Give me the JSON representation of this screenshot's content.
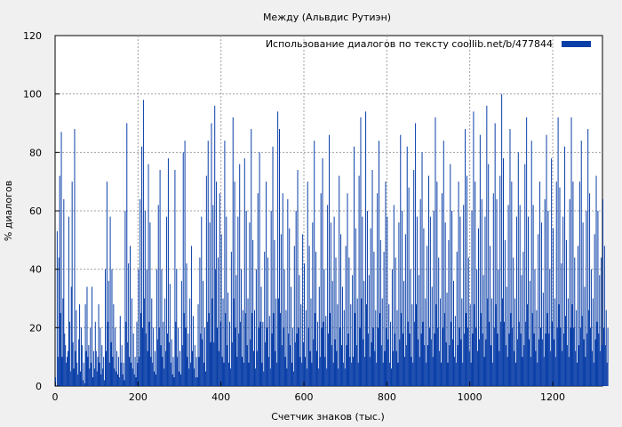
{
  "chart_data": {
    "type": "bar",
    "title": "Между (Альвдис Рутиэн)",
    "xlabel": "Счетчик знаков (тыс.)",
    "ylabel": "% диалогов",
    "xlim": [
      0,
      1320
    ],
    "ylim": [
      0,
      120
    ],
    "xticks": [
      0,
      200,
      400,
      600,
      800,
      1000,
      1200
    ],
    "yticks": [
      0,
      20,
      40,
      60,
      80,
      100,
      120
    ],
    "grid": true,
    "legend_position": "top-right",
    "bar_color": "#0b3fa8",
    "series": [
      {
        "name": "Использование диалогов по тексту  coollib.net/b/477844",
        "x_step": 2,
        "values": [
          3,
          0,
          53,
          10,
          44,
          72,
          25,
          87,
          10,
          30,
          64,
          18,
          14,
          8,
          10,
          12,
          58,
          22,
          5,
          34,
          70,
          15,
          6,
          88,
          12,
          26,
          8,
          4,
          16,
          28,
          5,
          20,
          14,
          2,
          8,
          1,
          28,
          12,
          34,
          10,
          14,
          6,
          20,
          8,
          34,
          3,
          12,
          6,
          22,
          12,
          5,
          10,
          28,
          8,
          20,
          4,
          14,
          6,
          10,
          2,
          40,
          12,
          70,
          22,
          36,
          8,
          58,
          15,
          40,
          10,
          28,
          6,
          20,
          5,
          12,
          4,
          10,
          3,
          24,
          8,
          14,
          4,
          8,
          2,
          60,
          22,
          90,
          15,
          42,
          10,
          48,
          8,
          30,
          6,
          18,
          4,
          10,
          3,
          22,
          8,
          40,
          10,
          64,
          25,
          82,
          20,
          98,
          30,
          60,
          18,
          40,
          12,
          76,
          22,
          56,
          10,
          30,
          8,
          20,
          5,
          12,
          4,
          40,
          16,
          62,
          20,
          74,
          14,
          40,
          10,
          22,
          6,
          30,
          12,
          58,
          18,
          78,
          15,
          35,
          8,
          16,
          4,
          10,
          3,
          74,
          22,
          40,
          10,
          20,
          5,
          12,
          4,
          36,
          14,
          80,
          25,
          84,
          20,
          42,
          10,
          18,
          6,
          30,
          8,
          48,
          12,
          24,
          6,
          14,
          3,
          10,
          3,
          28,
          10,
          44,
          18,
          58,
          16,
          36,
          8,
          20,
          5,
          72,
          22,
          84,
          25,
          56,
          15,
          90,
          30,
          62,
          15,
          96,
          40,
          70,
          20,
          44,
          12,
          66,
          22,
          52,
          10,
          30,
          8,
          84,
          25,
          58,
          14,
          32,
          8,
          22,
          6,
          46,
          15,
          92,
          30,
          70,
          20,
          38,
          10,
          58,
          18,
          76,
          22,
          40,
          10,
          26,
          8,
          78,
          25,
          60,
          14,
          30,
          8,
          56,
          16,
          88,
          25,
          50,
          12,
          26,
          6,
          40,
          12,
          66,
          20,
          80,
          22,
          34,
          8,
          22,
          5,
          46,
          15,
          70,
          20,
          44,
          10,
          24,
          6,
          60,
          18,
          82,
          25,
          50,
          12,
          30,
          8,
          94,
          30,
          88,
          25,
          52,
          14,
          66,
          20,
          40,
          10,
          26,
          6,
          64,
          18,
          54,
          14,
          34,
          8,
          20,
          5,
          48,
          15,
          60,
          18,
          74,
          20,
          38,
          10,
          28,
          8,
          52,
          15,
          42,
          10,
          26,
          6,
          70,
          20,
          48,
          12,
          30,
          8,
          56,
          16,
          84,
          25,
          46,
          12,
          22,
          6,
          34,
          10,
          66,
          20,
          78,
          22,
          40,
          10,
          24,
          6,
          62,
          18,
          86,
          25,
          56,
          14,
          36,
          8,
          58,
          16,
          44,
          12,
          28,
          6,
          72,
          20,
          52,
          14,
          34,
          8,
          26,
          6,
          48,
          14,
          66,
          18,
          44,
          10,
          28,
          8,
          38,
          10,
          82,
          25,
          54,
          14,
          30,
          8,
          72,
          20,
          92,
          30,
          58,
          16,
          36,
          10,
          94,
          28,
          60,
          18,
          38,
          10,
          54,
          15,
          74,
          20,
          46,
          12,
          26,
          8,
          66,
          20,
          84,
          25,
          50,
          14,
          30,
          8,
          46,
          12,
          70,
          20,
          58,
          16,
          28,
          8,
          22,
          6,
          40,
          12,
          62,
          18,
          44,
          12,
          26,
          8,
          56,
          16,
          86,
          25,
          60,
          18,
          36,
          10,
          52,
          14,
          82,
          22,
          68,
          18,
          40,
          10,
          28,
          8,
          74,
          22,
          90,
          28,
          58,
          16,
          38,
          10,
          64,
          18,
          80,
          22,
          54,
          14,
          30,
          8,
          48,
          14,
          72,
          20,
          58,
          16,
          34,
          10,
          60,
          18,
          92,
          28,
          70,
          20,
          44,
          12,
          30,
          8,
          66,
          20,
          84,
          25,
          56,
          15,
          32,
          8,
          50,
          14,
          76,
          22,
          60,
          16,
          36,
          10,
          24,
          8,
          46,
          14,
          70,
          20,
          58,
          16,
          30,
          8,
          62,
          18,
          88,
          25,
          72,
          20,
          44,
          12,
          28,
          8,
          60,
          18,
          94,
          28,
          70,
          20,
          40,
          12,
          54,
          16,
          86,
          25,
          64,
          18,
          38,
          10,
          58,
          16,
          96,
          30,
          76,
          22,
          48,
          14,
          30,
          8,
          66,
          20,
          90,
          28,
          64,
          18,
          40,
          12,
          72,
          22,
          100,
          30,
          78,
          22,
          50,
          14,
          34,
          10,
          62,
          18,
          88,
          25,
          70,
          20,
          44,
          12,
          30,
          8,
          58,
          16,
          80,
          22,
          62,
          18,
          38,
          10,
          46,
          14,
          76,
          22,
          92,
          28,
          58,
          16,
          36,
          10,
          84,
          25,
          62,
          18,
          40,
          12,
          26,
          8,
          52,
          16,
          70,
          20,
          56,
          16,
          32,
          10,
          64,
          18,
          86,
          25,
          60,
          18,
          40,
          12,
          78,
          22,
          54,
          16,
          30,
          10,
          70,
          20,
          92,
          28,
          68,
          20,
          42,
          12,
          58,
          18,
          82,
          24,
          50,
          14,
          30,
          10,
          64,
          20,
          92,
          28,
          70,
          20,
          44,
          12,
          26,
          8,
          48,
          14,
          70,
          20,
          84,
          24,
          56,
          16,
          34,
          10,
          60,
          18,
          88,
          26,
          66,
          20,
          40,
          12,
          30,
          8,
          52,
          16,
          72,
          22,
          60,
          18,
          38,
          12,
          44,
          14,
          64,
          20,
          48,
          14,
          26,
          8,
          20
        ]
      }
    ]
  }
}
